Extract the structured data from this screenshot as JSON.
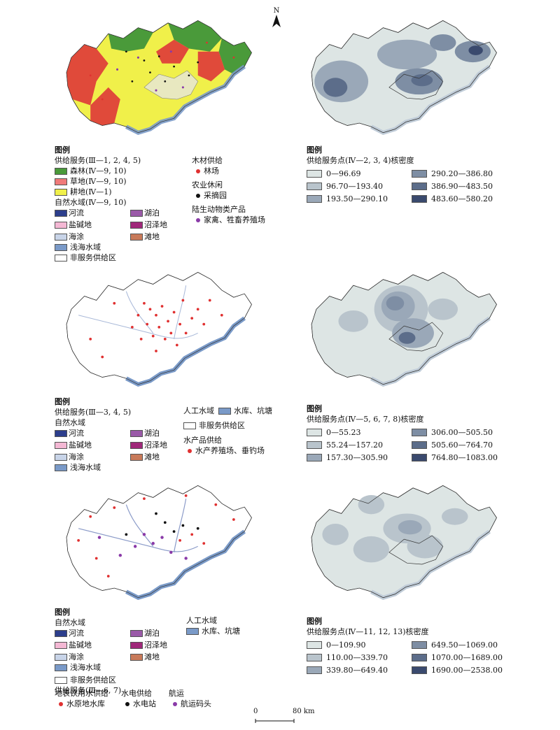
{
  "north_label": "N",
  "scale": {
    "zero": "0",
    "distance": "80 km"
  },
  "panel1": {
    "legend_title": "图例",
    "supply_title": "供给服务(Ⅲ—1, 2, 4, 5)",
    "landcover": [
      {
        "label": "森林(Ⅳ—9, 10)",
        "color": "#4a9a3a"
      },
      {
        "label": "草地(Ⅳ—9, 10)",
        "color": "#f07a7a"
      },
      {
        "label": "耕地(Ⅳ—1)",
        "color": "#f0f04a"
      }
    ],
    "water_title": "自然水域(Ⅳ—9, 10)",
    "water": [
      {
        "label": "河流",
        "color": "#2c3e8c"
      },
      {
        "label": "湖泊",
        "color": "#9a5aa8"
      },
      {
        "label": "盐碱地",
        "color": "#f4b8d4"
      },
      {
        "label": "沼泽地",
        "color": "#a0287a"
      },
      {
        "label": "海涂",
        "color": "#c8d4e8"
      },
      {
        "label": "滩地",
        "color": "#c87a5a"
      }
    ],
    "shallow_sea": {
      "label": "浅海水域",
      "color": "#7a9ac8"
    },
    "non_supply": "非服务供给区",
    "timber_title": "木材供给",
    "timber_item": {
      "label": "林场",
      "color": "#e03030"
    },
    "agri_title": "农业休闲",
    "agri_item": {
      "label": "采摘园",
      "color": "#111111"
    },
    "animal_title": "陆生动物类产品",
    "animal_item": {
      "label": "家禽、牲畜养殖场",
      "color": "#8a3aa8"
    }
  },
  "density1": {
    "legend_title": "图例",
    "title": "供给服务点(Ⅳ—2, 3, 4)核密度",
    "classes": [
      {
        "label": "0—96.69",
        "color": "#dde5e4"
      },
      {
        "label": "290.20—386.80",
        "color": "#7e8ea4"
      },
      {
        "label": "96.70—193.40",
        "color": "#b9c4cc"
      },
      {
        "label": "386.90—483.50",
        "color": "#5c6d8a"
      },
      {
        "label": "193.50—290.10",
        "color": "#9aa8b8"
      },
      {
        "label": "483.60—580.20",
        "color": "#3a4a6e"
      }
    ]
  },
  "panel2": {
    "legend_title": "图例",
    "supply_title": "供给服务(Ⅲ—3, 4, 5)",
    "water_title": "自然水域",
    "water": [
      {
        "label": "河流",
        "color": "#2c3e8c"
      },
      {
        "label": "湖泊",
        "color": "#9a5aa8"
      },
      {
        "label": "盐碱地",
        "color": "#f4b8d4"
      },
      {
        "label": "沼泽地",
        "color": "#a0287a"
      },
      {
        "label": "海涂",
        "color": "#c8d4e8"
      },
      {
        "label": "滩地",
        "color": "#c87a5a"
      }
    ],
    "shallow_sea": {
      "label": "浅海水域",
      "color": "#7a9ac8"
    },
    "artificial_title": "人工水域",
    "reservoir": {
      "label": "水库、坑塘",
      "color": "#7a9ac8"
    },
    "non_supply": "非服务供给区",
    "aquatic_title": "水产品供给",
    "aquatic_item": {
      "label": "水产养殖场、垂钓场",
      "color": "#e03030"
    }
  },
  "density2": {
    "legend_title": "图例",
    "title": "供给服务点(Ⅳ—5, 6, 7, 8)核密度",
    "classes": [
      {
        "label": "0—55.23",
        "color": "#dde5e4"
      },
      {
        "label": "306.00—505.50",
        "color": "#7e8ea4"
      },
      {
        "label": "55.24—157.20",
        "color": "#b9c4cc"
      },
      {
        "label": "505.60—764.70",
        "color": "#5c6d8a"
      },
      {
        "label": "157.30—305.90",
        "color": "#9aa8b8"
      },
      {
        "label": "764.80—1083.00",
        "color": "#3a4a6e"
      }
    ]
  },
  "panel3": {
    "legend_title": "图例",
    "water_title": "自然水域",
    "water": [
      {
        "label": "河流",
        "color": "#2c3e8c"
      },
      {
        "label": "湖泊",
        "color": "#9a5aa8"
      },
      {
        "label": "盐碱地",
        "color": "#f4b8d4"
      },
      {
        "label": "沼泽地",
        "color": "#a0287a"
      },
      {
        "label": "海涂",
        "color": "#c8d4e8"
      },
      {
        "label": "滩地",
        "color": "#c87a5a"
      }
    ],
    "shallow_sea": {
      "label": "浅海水域",
      "color": "#7a9ac8"
    },
    "artificial_title": "人工水域",
    "reservoir": {
      "label": "水库、坑塘",
      "color": "#7a9ac8"
    },
    "non_supply": "非服务供给区",
    "supply_title": "供给服务(Ⅲ—6, 7)",
    "drink_title": "地表饮用水供给",
    "drink_item": {
      "label": "水原地水库",
      "color": "#e03030"
    },
    "hydro_title": "水电供给",
    "hydro_item": {
      "label": "水电站",
      "color": "#111111"
    },
    "ship_title": "航运",
    "ship_item": {
      "label": "航运码头",
      "color": "#8a3aa8"
    }
  },
  "density3": {
    "legend_title": "图例",
    "title": "供给服务点(Ⅳ—11, 12, 13)核密度",
    "classes": [
      {
        "label": "0—109.90",
        "color": "#dde5e4"
      },
      {
        "label": "649.50—1069.00",
        "color": "#7e8ea4"
      },
      {
        "label": "110.00—339.70",
        "color": "#b9c4cc"
      },
      {
        "label": "1070.00—1689.00",
        "color": "#5c6d8a"
      },
      {
        "label": "339.80—649.40",
        "color": "#9aa8b8"
      },
      {
        "label": "1690.00—2538.00",
        "color": "#3a4a6e"
      }
    ]
  }
}
